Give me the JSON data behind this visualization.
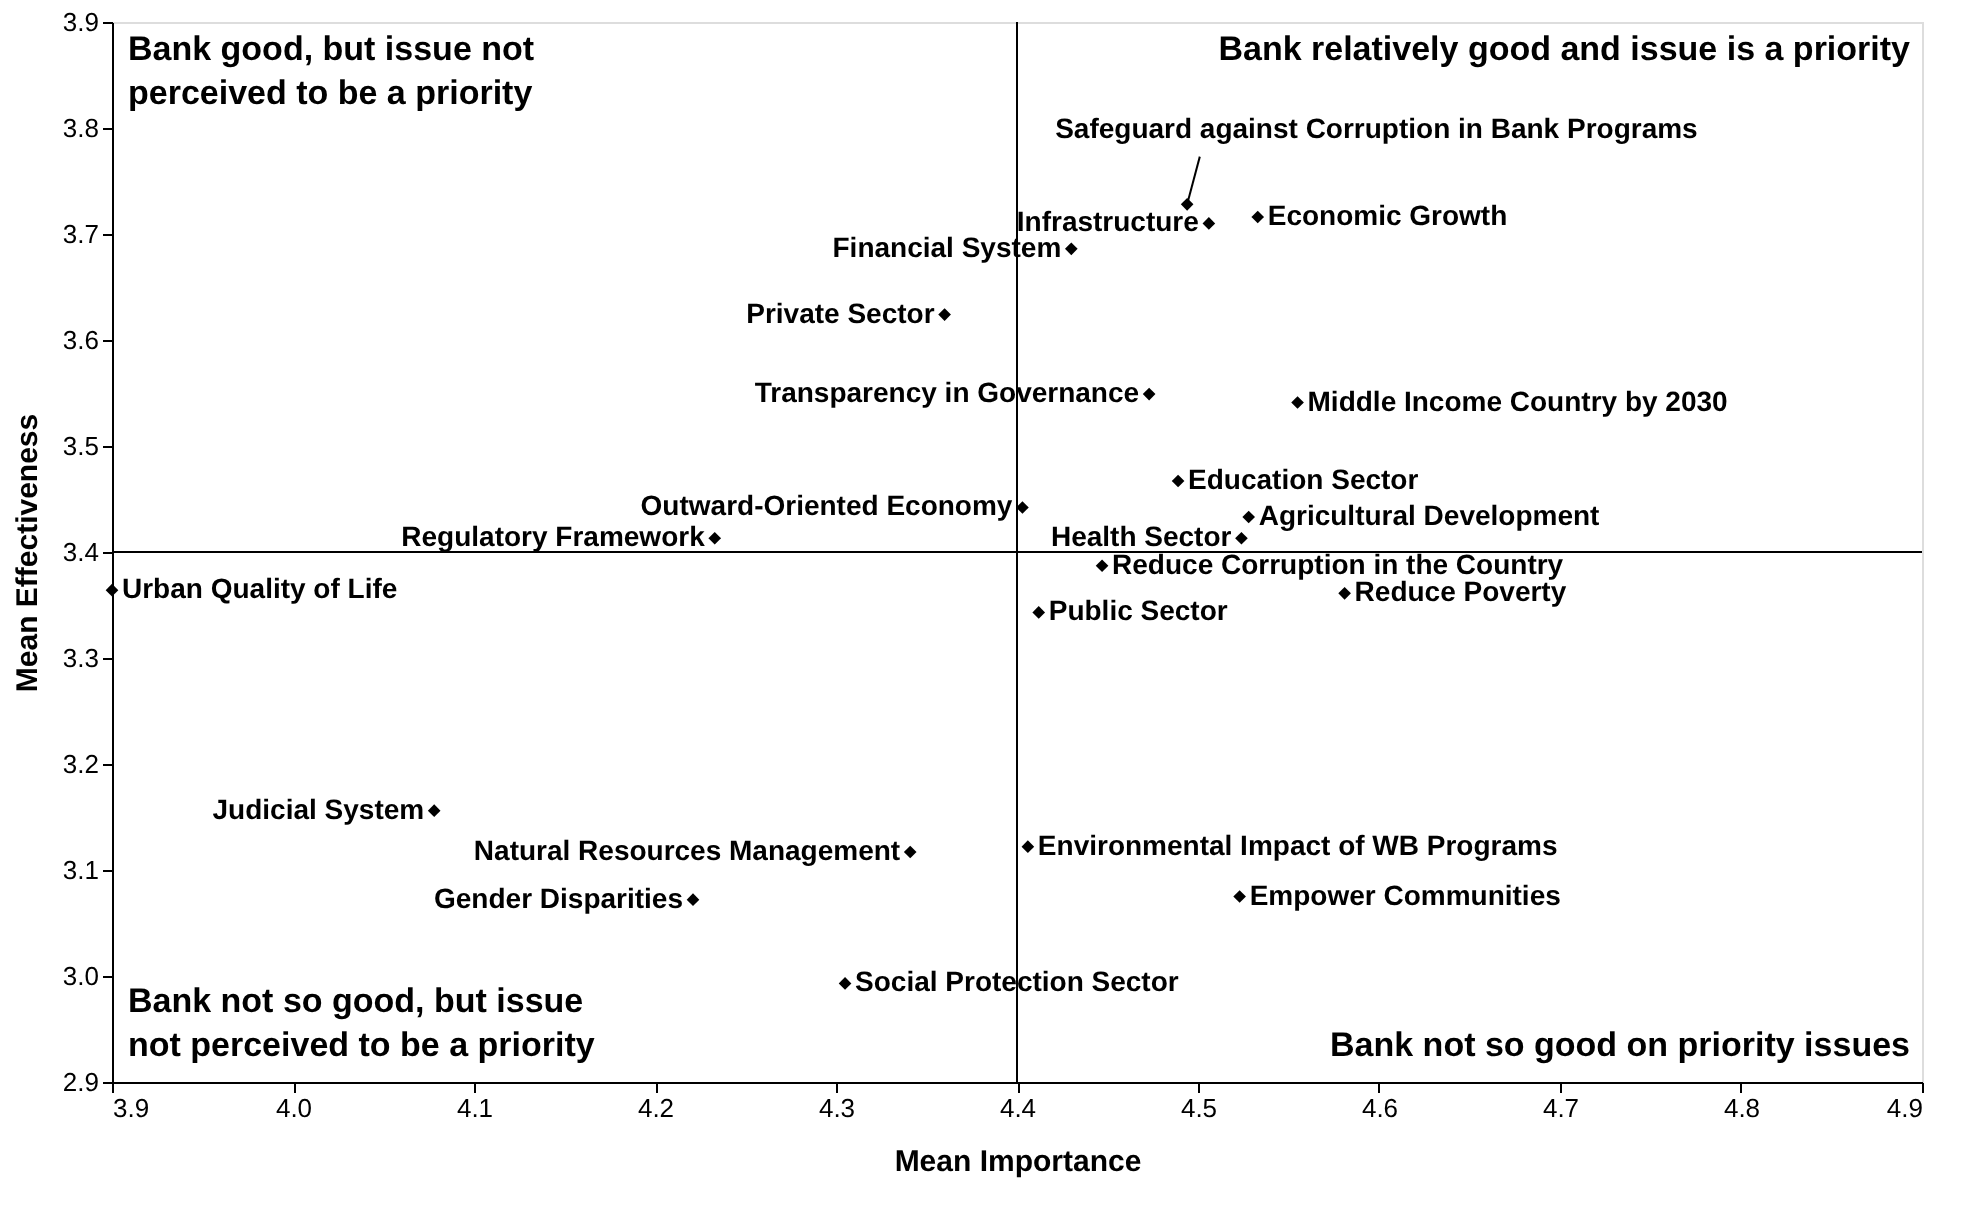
{
  "chart_data": {
    "type": "scatter",
    "xlabel": "Mean Importance",
    "ylabel": "Mean Effectiveness",
    "x": [
      4.494,
      4.506,
      4.533,
      4.43,
      4.36,
      4.473,
      4.555,
      4.489,
      4.403,
      4.528,
      4.524,
      4.233,
      3.9,
      4.447,
      4.581,
      4.412,
      4.078,
      4.341,
      4.221,
      4.406,
      4.523,
      4.305
    ],
    "values": [
      3.728,
      3.71,
      3.716,
      3.686,
      3.624,
      3.549,
      3.541,
      3.467,
      3.442,
      3.433,
      3.413,
      3.413,
      3.364,
      3.387,
      3.361,
      3.343,
      3.156,
      3.117,
      3.072,
      3.122,
      3.075,
      2.993
    ],
    "color": "#000000",
    "marker": "diamond",
    "grid": false,
    "xlim": [
      3.9,
      4.9
    ],
    "ylim": [
      2.9,
      3.9
    ],
    "xticks": [
      3.9,
      {
        "value": 4,
        "label": "4.0"
      },
      4.1,
      4.2,
      4.3,
      4.4,
      4.5,
      4.6,
      4.7,
      4.8,
      4.9
    ],
    "yticks": [
      2.9,
      {
        "value": 3,
        "label": "3.0"
      },
      3.1,
      3.2,
      3.3,
      3.4,
      3.5,
      3.6,
      3.7,
      3.8,
      3.9
    ],
    "ref_lines": [
      {
        "axis": "x",
        "value": 4.4,
        "color": "#000000"
      },
      {
        "axis": "y",
        "value": 3.4,
        "color": "#000000"
      }
    ],
    "annotations": [
      "Bank good, but issue not\nperceived to be a priority",
      "Bank relatively good and issue is a priority",
      "Bank not so good, but issue\nnot perceived to be a priority",
      "Bank not so good on priority issues",
      {
        "text": "Safeguard against Corruption in Bank Programs",
        "x": 4.494,
        "y": 3.728
      },
      {
        "text": "Infrastructure",
        "x": 4.506,
        "y": 3.71
      },
      {
        "text": "Economic Growth",
        "x": 4.533,
        "y": 3.716
      },
      {
        "text": "Financial System",
        "x": 4.43,
        "y": 3.686
      },
      {
        "text": "Private Sector",
        "x": 4.36,
        "y": 3.624
      },
      {
        "text": "Transparency in Governance",
        "x": 4.473,
        "y": 3.549
      },
      {
        "text": "Middle Income Country by 2030",
        "x": 4.555,
        "y": 3.541
      },
      {
        "text": "Education Sector",
        "x": 4.489,
        "y": 3.467
      },
      {
        "text": "Outward-Oriented Economy",
        "x": 4.403,
        "y": 3.442
      },
      {
        "text": "Agricultural Development",
        "x": 4.528,
        "y": 3.433
      },
      {
        "text": "Health Sector",
        "x": 4.524,
        "y": 3.413
      },
      {
        "text": "Regulatory Framework",
        "x": 4.233,
        "y": 3.413
      },
      {
        "text": "Urban Quality of Life",
        "x": 3.9,
        "y": 3.364
      },
      {
        "text": "Reduce Corruption in the Country",
        "x": 4.447,
        "y": 3.387
      },
      {
        "text": "Reduce Poverty",
        "x": 4.581,
        "y": 3.361
      },
      {
        "text": "Public Sector",
        "x": 4.412,
        "y": 3.343
      },
      {
        "text": "Judicial System",
        "x": 4.078,
        "y": 3.156
      },
      {
        "text": "Natural Resources Management",
        "x": 4.341,
        "y": 3.117
      },
      {
        "text": "Gender Disparities",
        "x": 4.221,
        "y": 3.072
      },
      {
        "text": "Environmental Impact of WB Programs",
        "x": 4.406,
        "y": 3.122
      },
      {
        "text": "Empower Communities",
        "x": 4.523,
        "y": 3.075
      },
      {
        "text": "Social Protection Sector",
        "x": 4.305,
        "y": 2.993
      }
    ]
  }
}
